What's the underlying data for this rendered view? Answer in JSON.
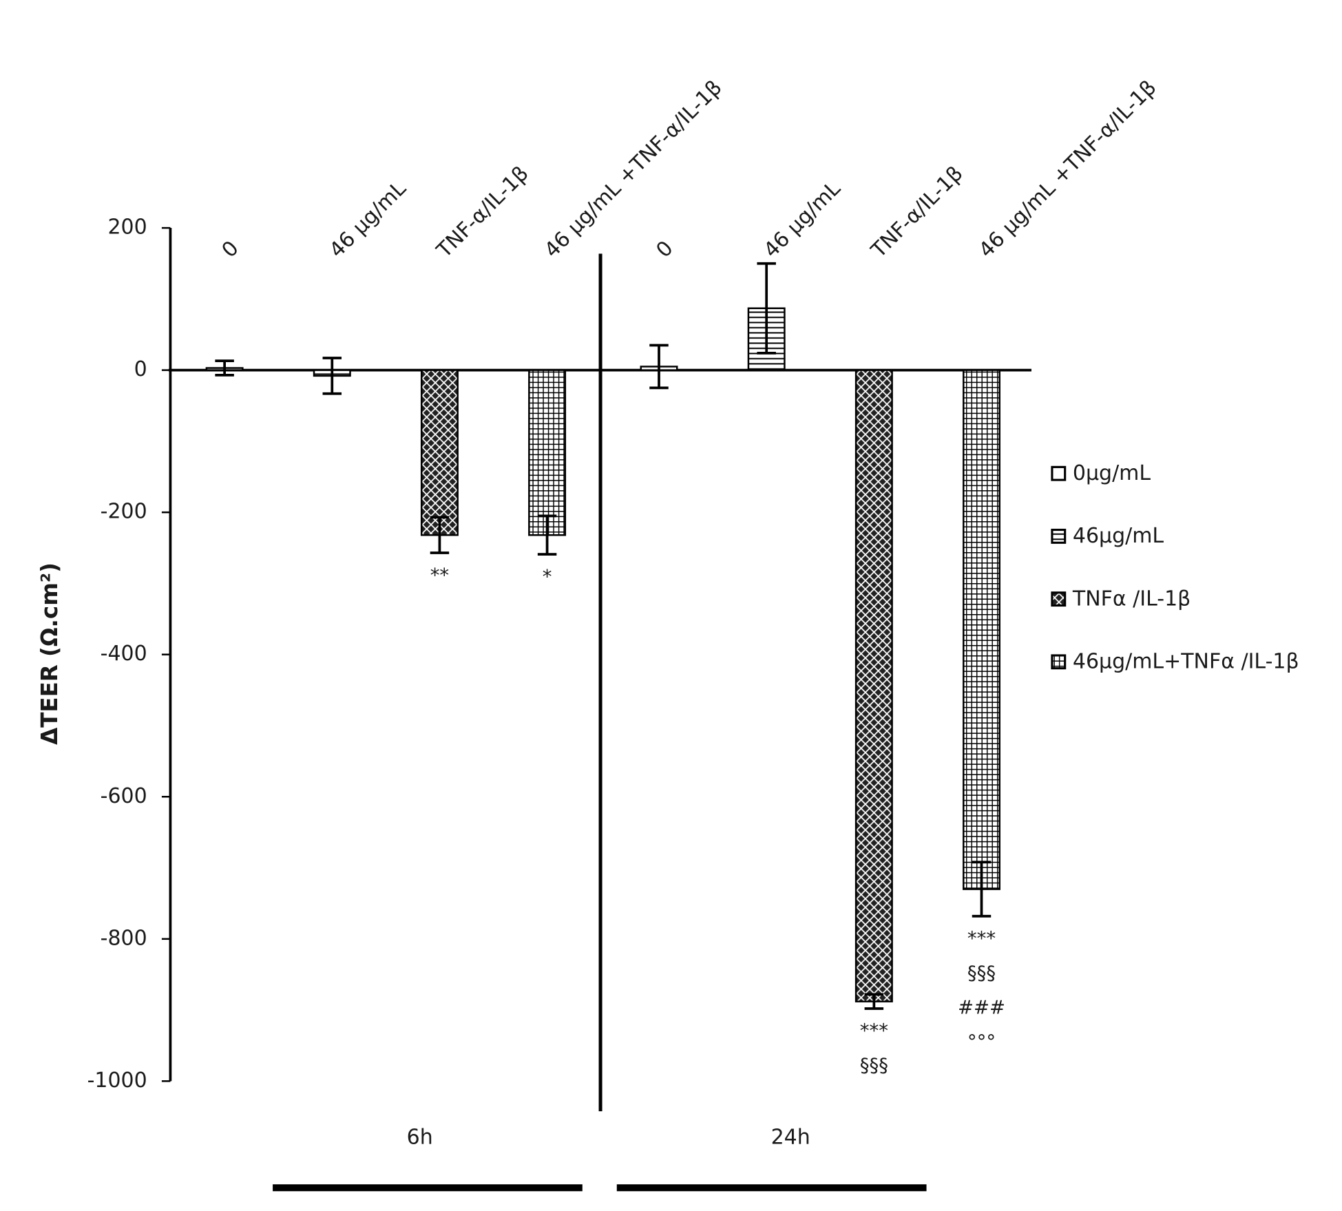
{
  "chart_data": {
    "type": "bar",
    "y_label": "ΔTEER (Ω.cm²)",
    "categories": [
      "6h",
      "24h"
    ],
    "bar_labels": [
      [
        "0",
        "46 µg/mL",
        "TNF-α/IL-1β",
        "46 µg/mL +TNF-α/IL-1β"
      ],
      [
        "0",
        "46 µg/mL",
        "TNF-α/IL-1β",
        "46 µg/mL +TNF-α/IL-1β"
      ]
    ],
    "series": [
      {
        "name": "0µg/mL",
        "color": "#ffffff",
        "pattern": "none",
        "values": [
          3,
          5
        ],
        "errors": [
          10,
          30
        ],
        "annotations": [
          [],
          []
        ]
      },
      {
        "name": "46µg/mL",
        "color": "#000000",
        "pattern": "horizontal",
        "values": [
          -8,
          87
        ],
        "errors": [
          25,
          63
        ],
        "annotations": [
          [],
          []
        ]
      },
      {
        "name": "TNFα /IL-1β",
        "color": "#000000",
        "pattern": "crosshatch",
        "values": [
          -232,
          -888
        ],
        "errors": [
          25,
          10
        ],
        "annotations": [
          [
            "**"
          ],
          [
            "***",
            "§§§"
          ]
        ]
      },
      {
        "name": "46µg/mL+TNFα /IL-1β",
        "color": "#000000",
        "pattern": "grid",
        "values": [
          -232,
          -730
        ],
        "errors": [
          27,
          38
        ],
        "annotations": [
          [
            "*"
          ],
          [
            "***",
            "§§§",
            "###",
            "°°°"
          ]
        ]
      }
    ],
    "ylim": [
      -1000,
      200
    ],
    "yticks": [
      -1000,
      -800,
      -600,
      -400,
      -200,
      0,
      200
    ]
  }
}
